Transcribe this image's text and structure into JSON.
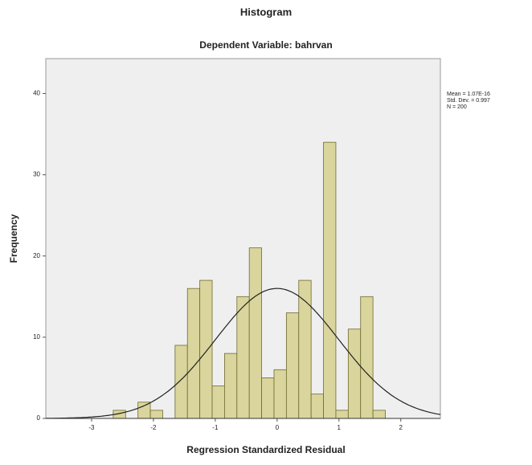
{
  "chart_data": {
    "type": "histogram",
    "title": "Histogram",
    "subtitle": "Dependent Variable: bahrvan",
    "x_label": "Regression Standardized Residual",
    "y_label": "Frequency",
    "bins": [
      -2.65,
      -2.45,
      -2.25,
      -2.05,
      -1.85,
      -1.65,
      -1.45,
      -1.25,
      -1.05,
      -0.85,
      -0.65,
      -0.45,
      -0.25,
      -0.05,
      0.15,
      0.35,
      0.55,
      0.75,
      0.95,
      1.15,
      1.35,
      1.55,
      1.75
    ],
    "values": [
      1,
      0,
      2,
      1,
      0,
      9,
      16,
      17,
      4,
      8,
      15,
      21,
      5,
      6,
      13,
      17,
      3,
      34,
      1,
      11,
      15,
      1
    ],
    "color": "#d9d59c",
    "xlim": [
      -3.74,
      2.64
    ],
    "ylim": [
      0,
      44.3
    ],
    "xticks": [
      -3,
      -2,
      -1,
      0,
      1,
      2
    ],
    "yticks": [
      0,
      10,
      20,
      30,
      40
    ],
    "stats": [
      {
        "value": 1.07e-16,
        "label": "Mean = 1.07E-16"
      },
      {
        "value": 0.997,
        "label": "Std. Dev. = 0.997"
      },
      {
        "value": 200,
        "label": "N = 200"
      }
    ],
    "normal_curve": true
  }
}
